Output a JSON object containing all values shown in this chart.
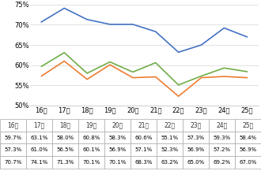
{
  "years": [
    "16年",
    "17年",
    "18年",
    "19年",
    "20年",
    "21年",
    "22年",
    "23年",
    "24年",
    "25年"
  ],
  "series": {
    "理一": [
      59.7,
      63.1,
      58.0,
      60.8,
      58.3,
      60.6,
      55.1,
      57.3,
      59.3,
      58.4
    ],
    "理二": [
      57.3,
      61.0,
      56.5,
      60.1,
      56.9,
      57.1,
      52.3,
      56.9,
      57.2,
      56.9
    ],
    "理三": [
      70.7,
      74.1,
      71.3,
      70.1,
      70.1,
      68.3,
      63.2,
      65.0,
      69.2,
      67.0
    ]
  },
  "colors": {
    "理一": "#70AD47",
    "理二": "#ED7D31",
    "理三": "#4472C4"
  },
  "ylim": [
    50,
    75
  ],
  "yticks": [
    50,
    55,
    60,
    65,
    70,
    75
  ],
  "ytick_labels": [
    "50%",
    "55%",
    "60%",
    "65%",
    "70%",
    "75%"
  ],
  "grid_color": "#DDDDDD",
  "table_border_color": "#AAAAAA"
}
